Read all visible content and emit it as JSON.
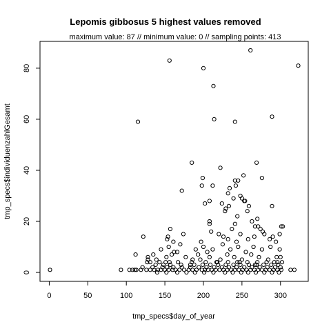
{
  "chart_data": {
    "type": "scatter",
    "title": "Lepomis gibbosus  5 highest values removed",
    "subtitle": "maximum value: 87  //  minimum value: 0  // sampling points: 413",
    "xlabel": "tmp_specs$day_of_year",
    "ylabel": "tmp_specs$individuenzahlGesamt",
    "xlim": [
      -12,
      336
    ],
    "ylim": [
      -3.5,
      90.5
    ],
    "xticks": [
      0,
      50,
      100,
      150,
      200,
      250,
      300
    ],
    "yticks": [
      0,
      20,
      40,
      60,
      80
    ],
    "grid": false,
    "points": [
      [
        1,
        1
      ],
      [
        93,
        1
      ],
      [
        104,
        1
      ],
      [
        108,
        1
      ],
      [
        111,
        1
      ],
      [
        113,
        1
      ],
      [
        119,
        1
      ],
      [
        126,
        1
      ],
      [
        131,
        1
      ],
      [
        136,
        1
      ],
      [
        141,
        1
      ],
      [
        145,
        1
      ],
      [
        150,
        1
      ],
      [
        155,
        1
      ],
      [
        160,
        1
      ],
      [
        164,
        1
      ],
      [
        169,
        1
      ],
      [
        175,
        1
      ],
      [
        181,
        1
      ],
      [
        186,
        1
      ],
      [
        191,
        1
      ],
      [
        198,
        1
      ],
      [
        202,
        1
      ],
      [
        206,
        1
      ],
      [
        211,
        1
      ],
      [
        216,
        1
      ],
      [
        221,
        1
      ],
      [
        226,
        1
      ],
      [
        231,
        1
      ],
      [
        236,
        1
      ],
      [
        241,
        1
      ],
      [
        246,
        1
      ],
      [
        251,
        1
      ],
      [
        256,
        1
      ],
      [
        261,
        1
      ],
      [
        266,
        1
      ],
      [
        271,
        1
      ],
      [
        276,
        1
      ],
      [
        281,
        1
      ],
      [
        286,
        1
      ],
      [
        291,
        1
      ],
      [
        296,
        1
      ],
      [
        301,
        1
      ],
      [
        313,
        1
      ],
      [
        318,
        1
      ],
      [
        121,
        2
      ],
      [
        134,
        2
      ],
      [
        147,
        2
      ],
      [
        153,
        2
      ],
      [
        161,
        2
      ],
      [
        172,
        2
      ],
      [
        183,
        2
      ],
      [
        194,
        2
      ],
      [
        204,
        2
      ],
      [
        214,
        2
      ],
      [
        224,
        2
      ],
      [
        233,
        2
      ],
      [
        243,
        2
      ],
      [
        253,
        2
      ],
      [
        263,
        2
      ],
      [
        273,
        2
      ],
      [
        283,
        2
      ],
      [
        293,
        2
      ],
      [
        300,
        2
      ],
      [
        140,
        0
      ],
      [
        152,
        0
      ],
      [
        166,
        0
      ],
      [
        178,
        0
      ],
      [
        189,
        0
      ],
      [
        201,
        0
      ],
      [
        213,
        0
      ],
      [
        228,
        0
      ],
      [
        238,
        0
      ],
      [
        249,
        0
      ],
      [
        258,
        0
      ],
      [
        268,
        0
      ],
      [
        279,
        0
      ],
      [
        289,
        0
      ],
      [
        298,
        0
      ],
      [
        138,
        3
      ],
      [
        148,
        3
      ],
      [
        157,
        3
      ],
      [
        171,
        3
      ],
      [
        188,
        3
      ],
      [
        199,
        3
      ],
      [
        209,
        3
      ],
      [
        219,
        3
      ],
      [
        229,
        3
      ],
      [
        239,
        3
      ],
      [
        248,
        3
      ],
      [
        259,
        3
      ],
      [
        269,
        3
      ],
      [
        278,
        3
      ],
      [
        288,
        3
      ],
      [
        297,
        3
      ],
      [
        131,
        4
      ],
      [
        143,
        4
      ],
      [
        156,
        4
      ],
      [
        167,
        4
      ],
      [
        185,
        4
      ],
      [
        203,
        4
      ],
      [
        217,
        4
      ],
      [
        232,
        4
      ],
      [
        244,
        4
      ],
      [
        257,
        4
      ],
      [
        270,
        4
      ],
      [
        282,
        4
      ],
      [
        292,
        4
      ],
      [
        302,
        4
      ],
      [
        128,
        6
      ],
      [
        135,
        7
      ],
      [
        112,
        7
      ],
      [
        139,
        5
      ],
      [
        152,
        6
      ],
      [
        159,
        7
      ],
      [
        166,
        8
      ],
      [
        177,
        6
      ],
      [
        186,
        5
      ],
      [
        193,
        7
      ],
      [
        208,
        6
      ],
      [
        222,
        5
      ],
      [
        231,
        7
      ],
      [
        240,
        6
      ],
      [
        250,
        5
      ],
      [
        262,
        7
      ],
      [
        272,
        6
      ],
      [
        284,
        5
      ],
      [
        295,
        6
      ],
      [
        300,
        6
      ],
      [
        145,
        9
      ],
      [
        155,
        10
      ],
      [
        162,
        8
      ],
      [
        170,
        11
      ],
      [
        190,
        9
      ],
      [
        200,
        10
      ],
      [
        205,
        8
      ],
      [
        212,
        9
      ],
      [
        225,
        11
      ],
      [
        235,
        9
      ],
      [
        245,
        10
      ],
      [
        255,
        8
      ],
      [
        265,
        10
      ],
      [
        276,
        9
      ],
      [
        287,
        10
      ],
      [
        299,
        9
      ],
      [
        128,
        5
      ],
      [
        127,
        4
      ],
      [
        151,
        4
      ],
      [
        183,
        3
      ],
      [
        196,
        5
      ],
      [
        218,
        4
      ],
      [
        247,
        4
      ],
      [
        267,
        3
      ],
      [
        296,
        4
      ],
      [
        153,
        13
      ],
      [
        157,
        17
      ],
      [
        154,
        14
      ],
      [
        161,
        12
      ],
      [
        174,
        15
      ],
      [
        197,
        12
      ],
      [
        208,
        19
      ],
      [
        210,
        16
      ],
      [
        220,
        15
      ],
      [
        226,
        14
      ],
      [
        232,
        13
      ],
      [
        237,
        17
      ],
      [
        243,
        12
      ],
      [
        248,
        15
      ],
      [
        258,
        13
      ],
      [
        266,
        14
      ],
      [
        271,
        18
      ],
      [
        277,
        16
      ],
      [
        286,
        13
      ],
      [
        294,
        12
      ],
      [
        301,
        18
      ],
      [
        303,
        18
      ],
      [
        299,
        15
      ],
      [
        122,
        14
      ],
      [
        208,
        20
      ],
      [
        228,
        24
      ],
      [
        229,
        25
      ],
      [
        233,
        26
      ],
      [
        241,
        19
      ],
      [
        244,
        22
      ],
      [
        253,
        28
      ],
      [
        257,
        24
      ],
      [
        263,
        20
      ],
      [
        270,
        21
      ],
      [
        274,
        17
      ],
      [
        279,
        15
      ],
      [
        290,
        14
      ],
      [
        172,
        32
      ],
      [
        198,
        34
      ],
      [
        202,
        27
      ],
      [
        208,
        28
      ],
      [
        212,
        34
      ],
      [
        224,
        27
      ],
      [
        232,
        31
      ],
      [
        234,
        33
      ],
      [
        239,
        29
      ],
      [
        242,
        34
      ],
      [
        245,
        36
      ],
      [
        248,
        30
      ],
      [
        250,
        29
      ],
      [
        254,
        28
      ],
      [
        259,
        26
      ],
      [
        267,
        18
      ],
      [
        185,
        43
      ],
      [
        199,
        37
      ],
      [
        222,
        41
      ],
      [
        241,
        36
      ],
      [
        252,
        38
      ],
      [
        269,
        43
      ],
      [
        276,
        37
      ],
      [
        289,
        26
      ],
      [
        115,
        59
      ],
      [
        156,
        83
      ],
      [
        200,
        80
      ],
      [
        213,
        73
      ],
      [
        214,
        60
      ],
      [
        241,
        59
      ],
      [
        261,
        87
      ],
      [
        289,
        61
      ],
      [
        323,
        81
      ]
    ]
  }
}
